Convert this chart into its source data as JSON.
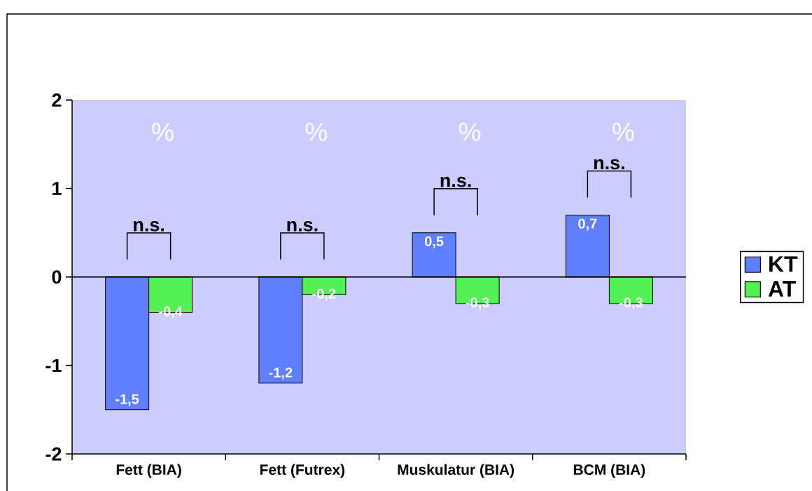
{
  "chart_data": {
    "type": "bar",
    "categories": [
      "Fett (BIA)",
      "Fett (Futrex)",
      "Muskulatur (BIA)",
      "BCM (BIA)"
    ],
    "series": [
      {
        "name": "KT",
        "color": "#5f7fff",
        "values": [
          -1.5,
          -1.2,
          0.5,
          0.7
        ],
        "value_labels": [
          "-1,5",
          "-1,2",
          "0,5",
          "0,7"
        ]
      },
      {
        "name": "AT",
        "color": "#55f055",
        "values": [
          -0.4,
          -0.2,
          -0.3,
          -0.3
        ],
        "value_labels": [
          "-0,4",
          "-0,2",
          "-0,3",
          "-0,3"
        ]
      }
    ],
    "ylim": [
      -2,
      2
    ],
    "yticks": [
      -2,
      -1,
      0,
      1,
      2
    ],
    "legend": "right",
    "annotations": [
      "%",
      "%",
      "%",
      "%",
      "n.s.",
      "n.s.",
      "n.s.",
      "n.s."
    ]
  }
}
